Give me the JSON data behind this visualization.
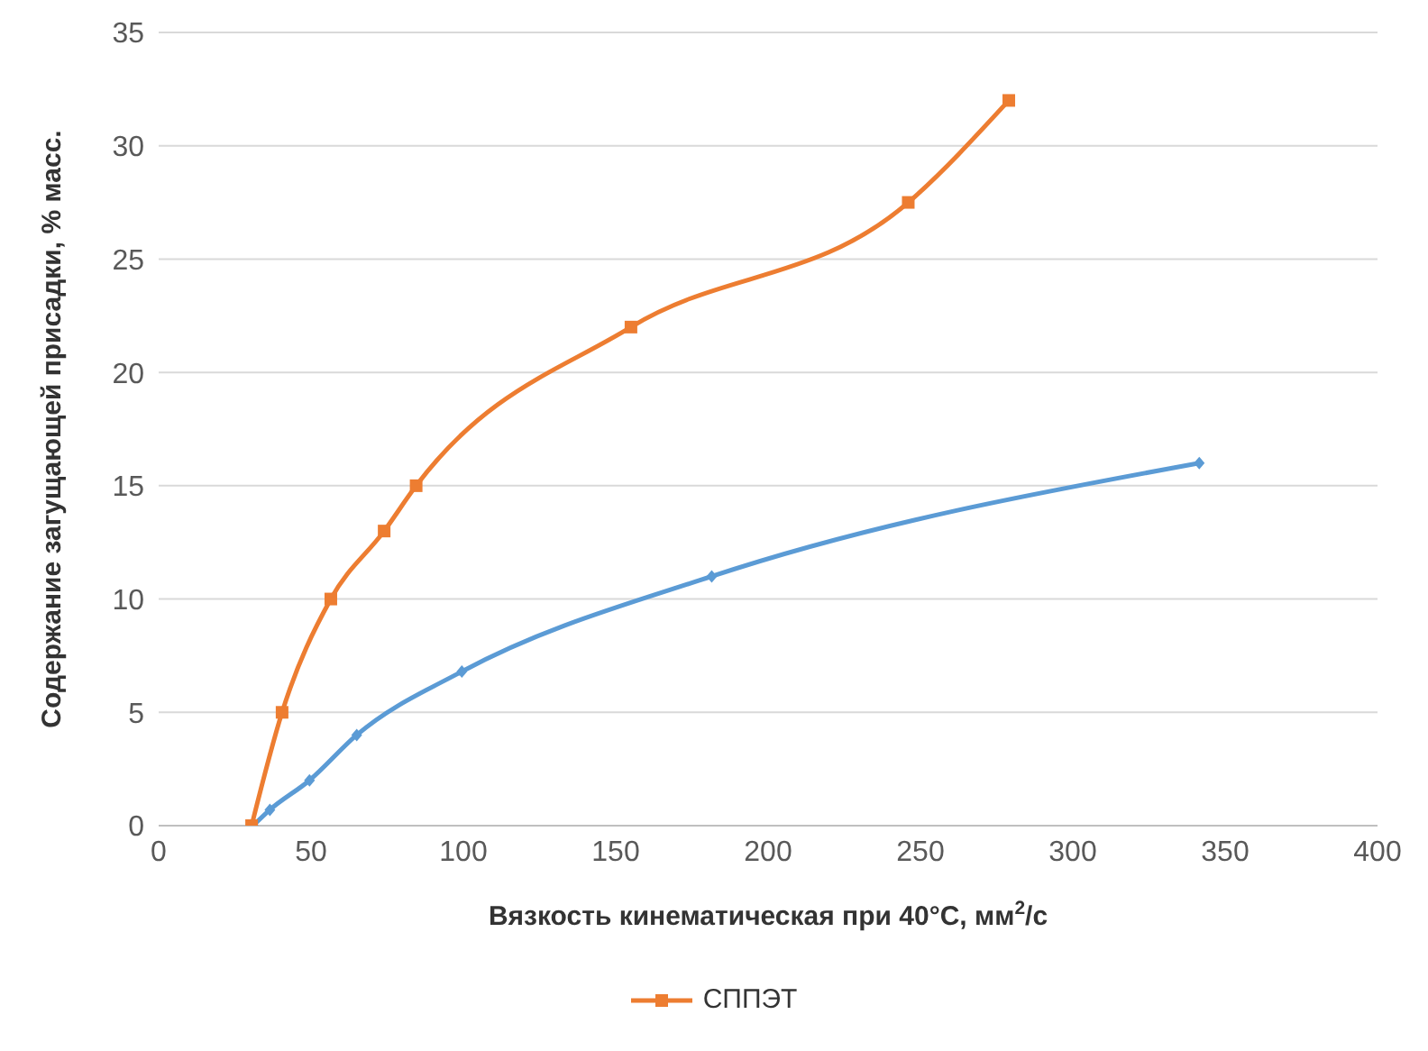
{
  "chart_data": {
    "type": "line",
    "xlabel": "Вязкость кинематическая при 40°C, мм$^{2}$/с",
    "ylabel": "Содержание загущающей присадки, % масс.",
    "xlim": [
      0,
      400
    ],
    "xticks": [
      0,
      50,
      100,
      150,
      200,
      250,
      300,
      350,
      400
    ],
    "ylim": [
      0,
      35
    ],
    "yticks": [
      0,
      5,
      10,
      15,
      20,
      25,
      30,
      35
    ],
    "grid": "y",
    "legend": "bottom",
    "series": [
      {
        "color": "#5b9bd5",
        "marker": "diamond",
        "x": [
          31,
          36.5,
          49.5,
          65,
          99.5,
          181.5,
          341.5
        ],
        "values": [
          0,
          0.7,
          2,
          4,
          6.8,
          11,
          16
        ]
      },
      {
        "name": "СППЭТ",
        "color": "#ed7d31",
        "marker": "square",
        "x": [
          30.5,
          40.5,
          56.5,
          74,
          84.5,
          155,
          246,
          279
        ],
        "values": [
          0,
          5,
          10,
          13,
          15,
          22,
          27.5,
          32
        ]
      }
    ]
  }
}
